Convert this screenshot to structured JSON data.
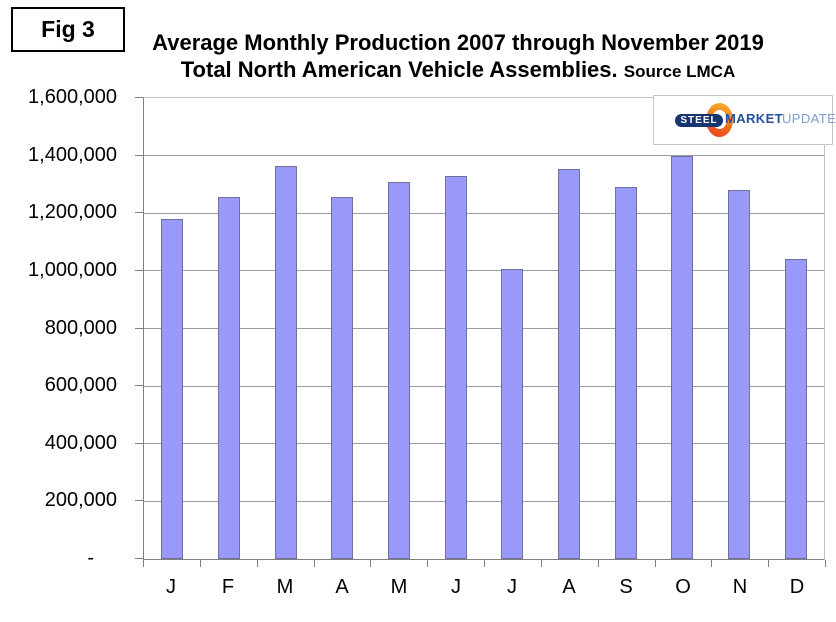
{
  "figure_label": "Fig 3",
  "title": {
    "line1": "Average Monthly Production 2007 through November 2019",
    "line2": "Total North American Vehicle Assemblies.",
    "source": "Source LMCA"
  },
  "logo": {
    "steel": "STEEL",
    "market": "MARKET",
    "update": "UPDATE"
  },
  "chart_data": {
    "type": "bar",
    "title": "Average Monthly Production 2007 through November 2019",
    "subtitle": "Total North American Vehicle Assemblies.",
    "source": "Source LMCA",
    "categories": [
      "J",
      "F",
      "M",
      "A",
      "M",
      "J",
      "J",
      "A",
      "S",
      "O",
      "N",
      "D"
    ],
    "values": [
      1180000,
      1255000,
      1365000,
      1255000,
      1310000,
      1330000,
      1005000,
      1355000,
      1290000,
      1400000,
      1280000,
      1040000
    ],
    "ylim": [
      0,
      1600000
    ],
    "ytick_interval": 200000,
    "ytick_labels": [
      "1,600,000",
      "1,400,000",
      "1,200,000",
      "1,000,000",
      "800,000",
      "600,000",
      "400,000",
      "200,000",
      "-"
    ],
    "grid": true,
    "legend": "none",
    "bar_color": "#9999fa",
    "bar_border_color": "#70709c",
    "gridline_color": "#9c9c9c",
    "axis_color": "#808080"
  }
}
